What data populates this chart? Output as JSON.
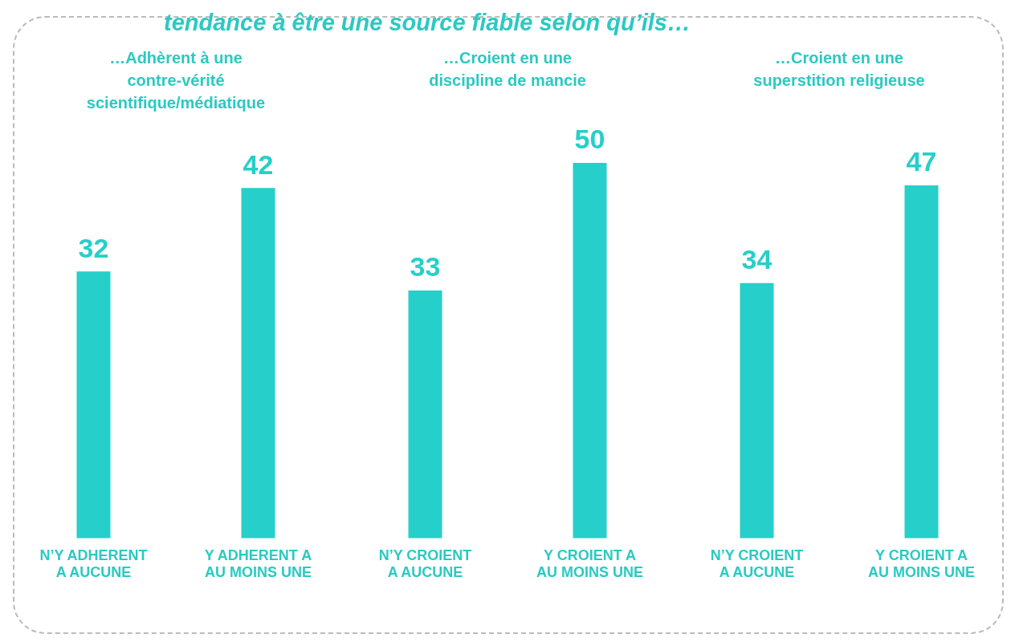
{
  "chart_data": [
    {
      "type": "other",
      "title": "tendance à être une source fiable selon qu’ils…"
    },
    {
      "type": "bar",
      "title": "…Adhèrent à une contre-vérité scientifique/médiatique",
      "categories": [
        "N’Y ADHERENT A AUCUNE",
        "Y ADHERENT A AU MOINS UNE"
      ],
      "values": [
        32,
        42
      ],
      "color": "#26cfc9",
      "data_labels": true,
      "tick_labels": "x",
      "grid": false,
      "legend": false
    },
    {
      "type": "bar",
      "title": "…Croient en une discipline de mancie",
      "categories": [
        "N’Y CROIENT A AUCUNE",
        "Y CROIENT A AU MOINS UNE"
      ],
      "values": [
        33,
        50
      ],
      "color": "#26cfc9",
      "data_labels": true,
      "tick_labels": "x",
      "grid": false,
      "legend": false
    },
    {
      "type": "bar",
      "title": "…Croient en une superstition religieuse",
      "categories": [
        "N’Y CROIENT A AUCUNE",
        "Y CROIENT A AU MOINS UNE"
      ],
      "values": [
        34,
        47
      ],
      "color": "#26cfc9",
      "data_labels": true,
      "tick_labels": "x",
      "grid": false,
      "legend": false
    }
  ]
}
